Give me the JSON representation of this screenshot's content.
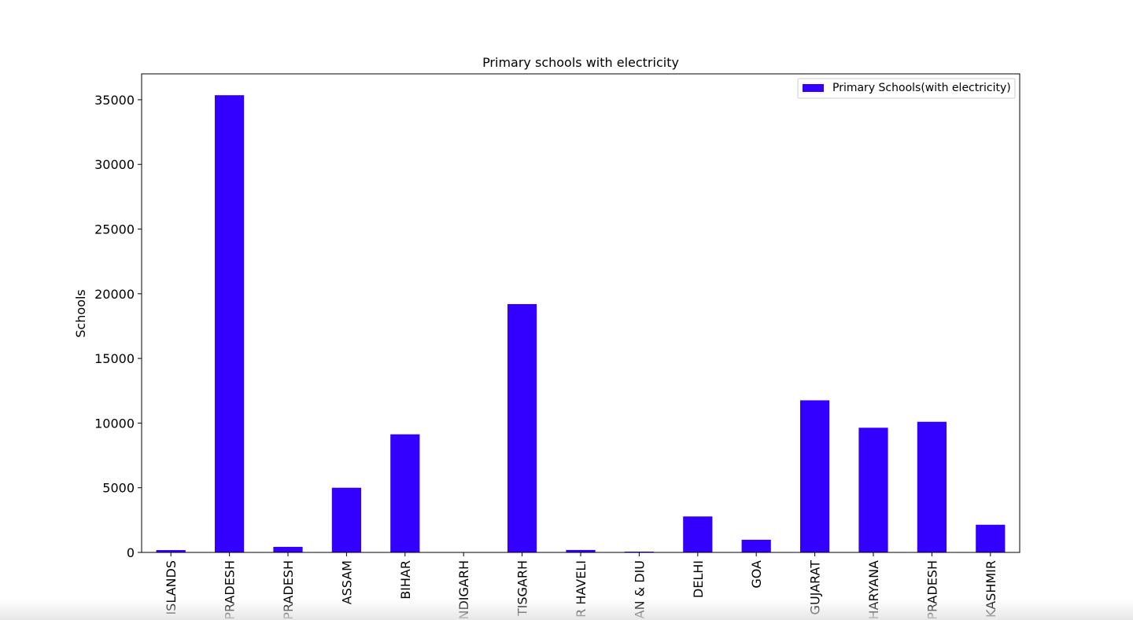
{
  "chart_data": {
    "type": "bar",
    "title": "Primary schools with electricity",
    "xlabel": "",
    "ylabel": "Schools",
    "ylim": [
      0,
      37000
    ],
    "yticks": [
      0,
      5000,
      10000,
      15000,
      20000,
      25000,
      30000,
      35000
    ],
    "grid": false,
    "legend": "top-right",
    "categories": [
      "ISLANDS",
      "PRADESH",
      "PRADESH",
      "ASSAM",
      "BIHAR",
      "NDIGARH",
      "TISGARH",
      "R HAVELI",
      "AN & DIU",
      "DELHI",
      "GOA",
      "GUJARAT",
      "HARYANA",
      "PRADESH",
      "KASHMIR"
    ],
    "series": [
      {
        "name": "Primary Schools(with electricity)",
        "color": "#3300ff",
        "values": [
          180,
          35350,
          430,
          5000,
          9130,
          10,
          19200,
          190,
          60,
          2780,
          980,
          11760,
          9640,
          10100,
          2140
        ]
      }
    ]
  }
}
